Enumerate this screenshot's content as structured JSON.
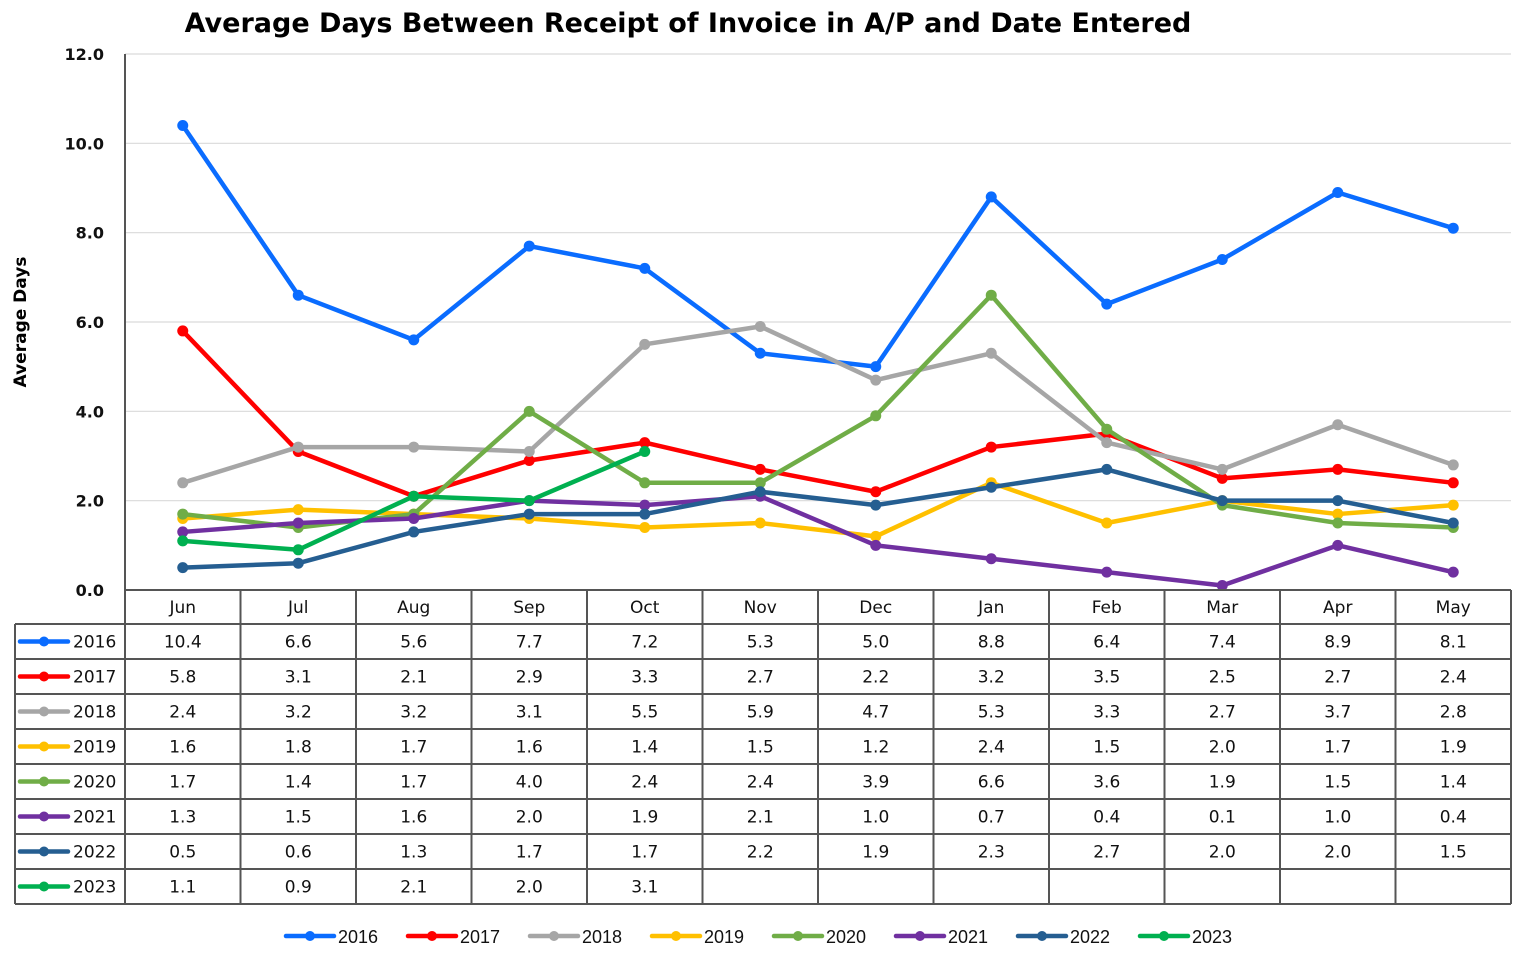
{
  "chart_data": {
    "type": "line",
    "title": "Average Days Between Receipt of Invoice in A/P and Date Entered",
    "xlabel": "",
    "ylabel": "Average Days",
    "ylim": [
      0,
      12
    ],
    "yticks": [
      "0.0",
      "2.0",
      "4.0",
      "6.0",
      "8.0",
      "10.0",
      "12.0"
    ],
    "grid": true,
    "legend_position": "bottom",
    "data_table": true,
    "categories": [
      "Jun",
      "Jul",
      "Aug",
      "Sep",
      "Oct",
      "Nov",
      "Dec",
      "Jan",
      "Feb",
      "Mar",
      "Apr",
      "May"
    ],
    "series": [
      {
        "name": "2016",
        "color": "#0a6cff",
        "values": [
          10.4,
          6.6,
          5.6,
          7.7,
          7.2,
          5.3,
          5.0,
          8.8,
          6.4,
          7.4,
          8.9,
          8.1
        ]
      },
      {
        "name": "2017",
        "color": "#ff0000",
        "values": [
          5.8,
          3.1,
          2.1,
          2.9,
          3.3,
          2.7,
          2.2,
          3.2,
          3.5,
          2.5,
          2.7,
          2.4
        ]
      },
      {
        "name": "2018",
        "color": "#a6a6a6",
        "values": [
          2.4,
          3.2,
          3.2,
          3.1,
          5.5,
          5.9,
          4.7,
          5.3,
          3.3,
          2.7,
          3.7,
          2.8
        ]
      },
      {
        "name": "2019",
        "color": "#ffc000",
        "values": [
          1.6,
          1.8,
          1.7,
          1.6,
          1.4,
          1.5,
          1.2,
          2.4,
          1.5,
          2.0,
          1.7,
          1.9
        ]
      },
      {
        "name": "2020",
        "color": "#70ad47",
        "values": [
          1.7,
          1.4,
          1.7,
          4.0,
          2.4,
          2.4,
          3.9,
          6.6,
          3.6,
          1.9,
          1.5,
          1.4
        ]
      },
      {
        "name": "2021",
        "color": "#7030a0",
        "values": [
          1.3,
          1.5,
          1.6,
          2.0,
          1.9,
          2.1,
          1.0,
          0.7,
          0.4,
          0.1,
          1.0,
          0.4
        ]
      },
      {
        "name": "2022",
        "color": "#255e91",
        "values": [
          0.5,
          0.6,
          1.3,
          1.7,
          1.7,
          2.2,
          1.9,
          2.3,
          2.7,
          2.0,
          2.0,
          1.5
        ]
      },
      {
        "name": "2023",
        "color": "#00b050",
        "values": [
          1.1,
          0.9,
          2.1,
          2.0,
          3.1,
          null,
          null,
          null,
          null,
          null,
          null,
          null
        ]
      }
    ]
  }
}
